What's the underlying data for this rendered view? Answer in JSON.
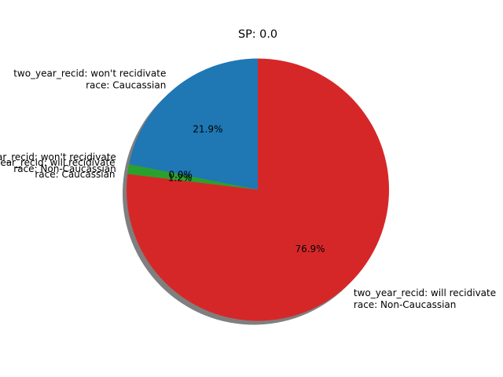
{
  "chart_data": {
    "type": "pie",
    "title": "SP: 0.0",
    "shadow": true,
    "start_angle_deg": 90,
    "direction": "counterclockwise",
    "slices": [
      {
        "label_line1": "two_year_recid: won't recidivate",
        "label_line2": "race: Caucassian",
        "value": 21.9,
        "pct_label": "21.9%",
        "color": "#1f77b4"
      },
      {
        "label_line1": "two_year_recid: won't recidivate",
        "label_line2": "race: Non-Caucassian",
        "value": 0.0,
        "pct_label": "0.0%",
        "color": "#ff7f0e"
      },
      {
        "label_line1": "two_year_recid: will recidivate",
        "label_line2": "race: Caucassian",
        "value": 1.2,
        "pct_label": "1.2%",
        "color": "#2ca02c"
      },
      {
        "label_line1": "two_year_recid: will recidivate",
        "label_line2": "race: Non-Caucassian",
        "value": 76.9,
        "pct_label": "76.9%",
        "color": "#d62728"
      }
    ]
  }
}
